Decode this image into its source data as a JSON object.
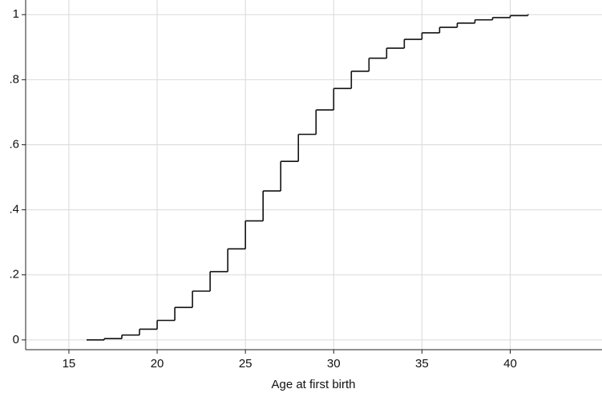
{
  "chart_data": {
    "type": "step",
    "xlabel": "Age at first birth",
    "x": [
      16,
      17,
      18,
      19,
      20,
      21,
      22,
      23,
      24,
      25,
      26,
      27,
      28,
      29,
      30,
      31,
      32,
      33,
      34,
      35,
      36,
      37,
      38,
      39,
      40,
      41
    ],
    "values": [
      0,
      0.004,
      0.015,
      0.033,
      0.06,
      0.1,
      0.15,
      0.21,
      0.28,
      0.366,
      0.458,
      0.549,
      0.632,
      0.707,
      0.773,
      0.826,
      0.866,
      0.897,
      0.924,
      0.944,
      0.961,
      0.974,
      0.984,
      0.991,
      0.997,
      1
    ],
    "color": "#111111",
    "xlim": [
      12.55,
      45.2
    ],
    "ylim": [
      -0.03,
      1.045
    ],
    "xticks": [
      15,
      20,
      25,
      30,
      35,
      40
    ],
    "yticks": [
      0,
      {
        "value": 0.2,
        "label": ".2"
      },
      {
        "value": 0.4,
        "label": ".4"
      },
      {
        "value": 0.6,
        "label": ".6"
      },
      {
        "value": 0.8,
        "label": ".8"
      },
      1
    ],
    "grid": true
  }
}
